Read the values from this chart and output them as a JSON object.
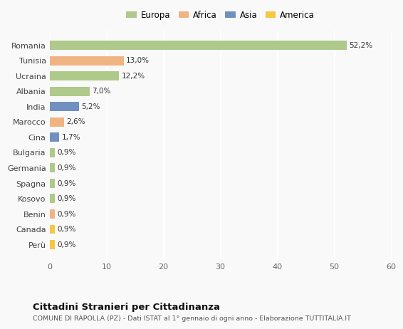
{
  "countries": [
    "Romania",
    "Tunisia",
    "Ucraina",
    "Albania",
    "India",
    "Marocco",
    "Cina",
    "Bulgaria",
    "Germania",
    "Spagna",
    "Kosovo",
    "Benin",
    "Canada",
    "Perù"
  ],
  "values": [
    52.2,
    13.0,
    12.2,
    7.0,
    5.2,
    2.6,
    1.7,
    0.9,
    0.9,
    0.9,
    0.9,
    0.9,
    0.9,
    0.9
  ],
  "labels": [
    "52,2%",
    "13,0%",
    "12,2%",
    "7,0%",
    "5,2%",
    "2,6%",
    "1,7%",
    "0,9%",
    "0,9%",
    "0,9%",
    "0,9%",
    "0,9%",
    "0,9%",
    "0,9%"
  ],
  "colors": [
    "#aec989",
    "#f0b482",
    "#aec989",
    "#aec989",
    "#7090c0",
    "#f0b482",
    "#7090c0",
    "#aec989",
    "#aec989",
    "#aec989",
    "#aec989",
    "#f0b482",
    "#f5c842",
    "#f5c842"
  ],
  "legend_labels": [
    "Europa",
    "Africa",
    "Asia",
    "America"
  ],
  "legend_colors": [
    "#aec989",
    "#f0b482",
    "#7090c0",
    "#f5c842"
  ],
  "xlim": [
    0,
    60
  ],
  "xticks": [
    0,
    10,
    20,
    30,
    40,
    50,
    60
  ],
  "title": "Cittadini Stranieri per Cittadinanza",
  "subtitle": "COMUNE DI RAPOLLA (PZ) - Dati ISTAT al 1° gennaio di ogni anno - Elaborazione TUTTITALIA.IT",
  "bg_color": "#f9f9f9",
  "grid_color": "#ffffff"
}
